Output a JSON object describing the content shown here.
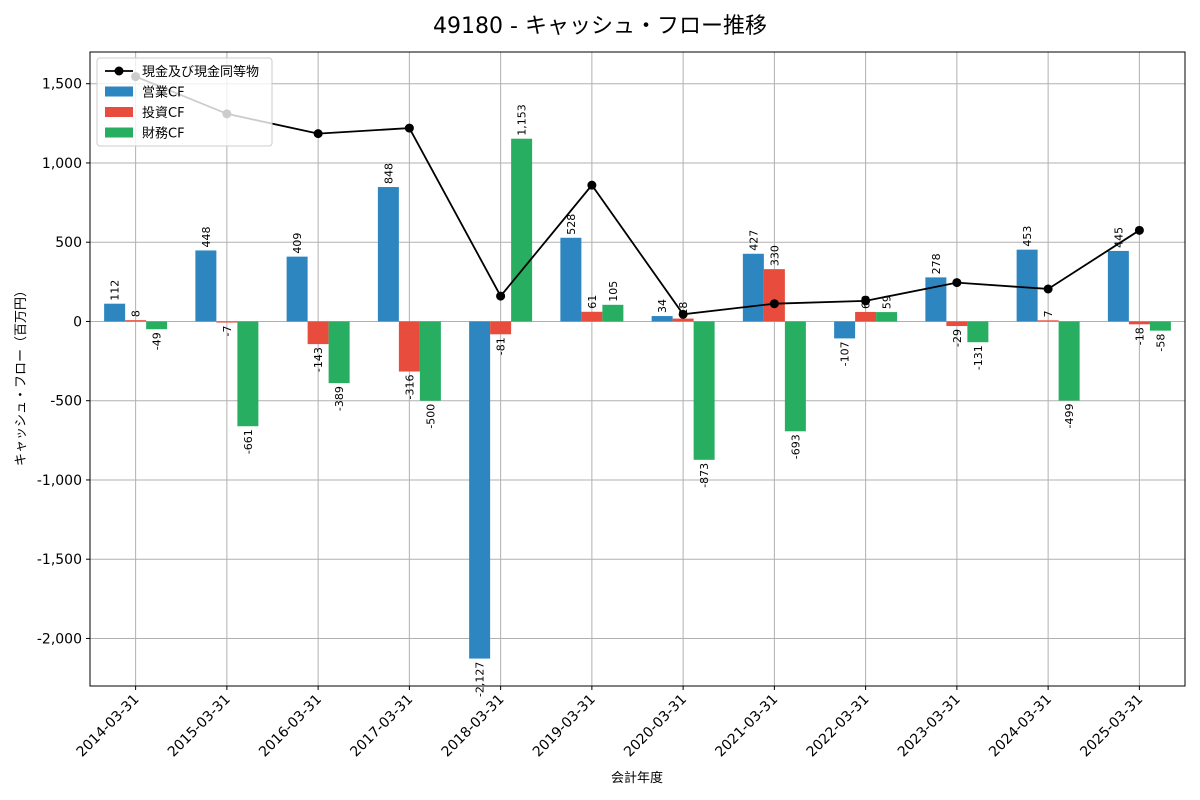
{
  "chart_data": {
    "type": "bar",
    "title": "49180 - キャッシュ・フロー推移",
    "xlabel": "会計年度",
    "ylabel": "キャッシュ・フロー（百万円）",
    "ylim": [
      -2300,
      1700
    ],
    "yticks": [
      -2000,
      -1500,
      -1000,
      -500,
      0,
      500,
      1000,
      1500
    ],
    "ytick_labels": [
      "-2,000",
      "-1,500",
      "-1,000",
      "-500",
      "0",
      "500",
      "1,000",
      "1,500"
    ],
    "grid": true,
    "legend_position": "top-left",
    "categories": [
      "2014-03-31",
      "2015-03-31",
      "2016-03-31",
      "2017-03-31",
      "2018-03-31",
      "2019-03-31",
      "2020-03-31",
      "2021-03-31",
      "2022-03-31",
      "2023-03-31",
      "2024-03-31",
      "2025-03-31"
    ],
    "series": [
      {
        "name": "営業CF",
        "kind": "bar",
        "color": "#2e86c1",
        "values": [
          112,
          448,
          409,
          848,
          -2127,
          528,
          34,
          427,
          -107,
          278,
          453,
          445
        ],
        "labels": [
          "112",
          "448",
          "409",
          "848",
          "-2,127",
          "528",
          "34",
          "427",
          "-107",
          "278",
          "453",
          "445"
        ]
      },
      {
        "name": "投資CF",
        "kind": "bar",
        "color": "#e74c3c",
        "values": [
          8,
          -7,
          -143,
          -316,
          -81,
          61,
          18,
          330,
          60,
          -29,
          7,
          -18
        ],
        "labels": [
          "8",
          "-7",
          "-143",
          "-316",
          "-81",
          "61",
          "18",
          "330",
          "60",
          "-29",
          "7",
          "-18"
        ]
      },
      {
        "name": "財務CF",
        "kind": "bar",
        "color": "#27ae60",
        "values": [
          -49,
          -661,
          -389,
          -500,
          1153,
          105,
          -873,
          -693,
          59,
          -131,
          -499,
          -58
        ],
        "labels": [
          "-49",
          "-661",
          "-389",
          "-500",
          "1,153",
          "105",
          "-873",
          "-693",
          "59",
          "-131",
          "-499",
          "-58"
        ]
      },
      {
        "name": "現金及び現金同等物",
        "kind": "line",
        "color": "#000000",
        "values": [
          1545,
          1310,
          1185,
          1220,
          160,
          860,
          45,
          112,
          130,
          245,
          205,
          575
        ]
      }
    ]
  }
}
